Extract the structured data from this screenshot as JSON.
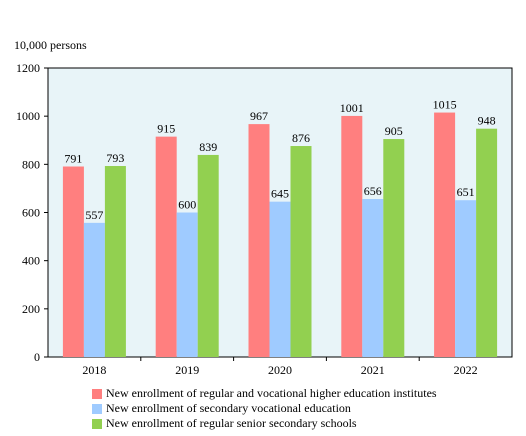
{
  "chart_data": {
    "type": "bar",
    "unit_label": "10,000 persons",
    "categories": [
      "2018",
      "2019",
      "2020",
      "2021",
      "2022"
    ],
    "series": [
      {
        "name": "New enrollment of regular and vocational higher education institutes",
        "color": "#ff7f7f",
        "values": [
          791,
          915,
          967,
          1001,
          1015
        ]
      },
      {
        "name": "New enrollment of secondary vocational education",
        "color": "#9fcbff",
        "values": [
          557,
          600,
          645,
          656,
          651
        ]
      },
      {
        "name": "New enrollment of regular senior secondary schools",
        "color": "#92d050",
        "values": [
          793,
          839,
          876,
          905,
          948
        ]
      }
    ],
    "ylim": [
      0,
      1200
    ],
    "yticks": [
      0,
      200,
      400,
      600,
      800,
      1000,
      1200
    ],
    "plot_background": "#e8f4f8",
    "grid": false,
    "legend_position": "bottom"
  }
}
